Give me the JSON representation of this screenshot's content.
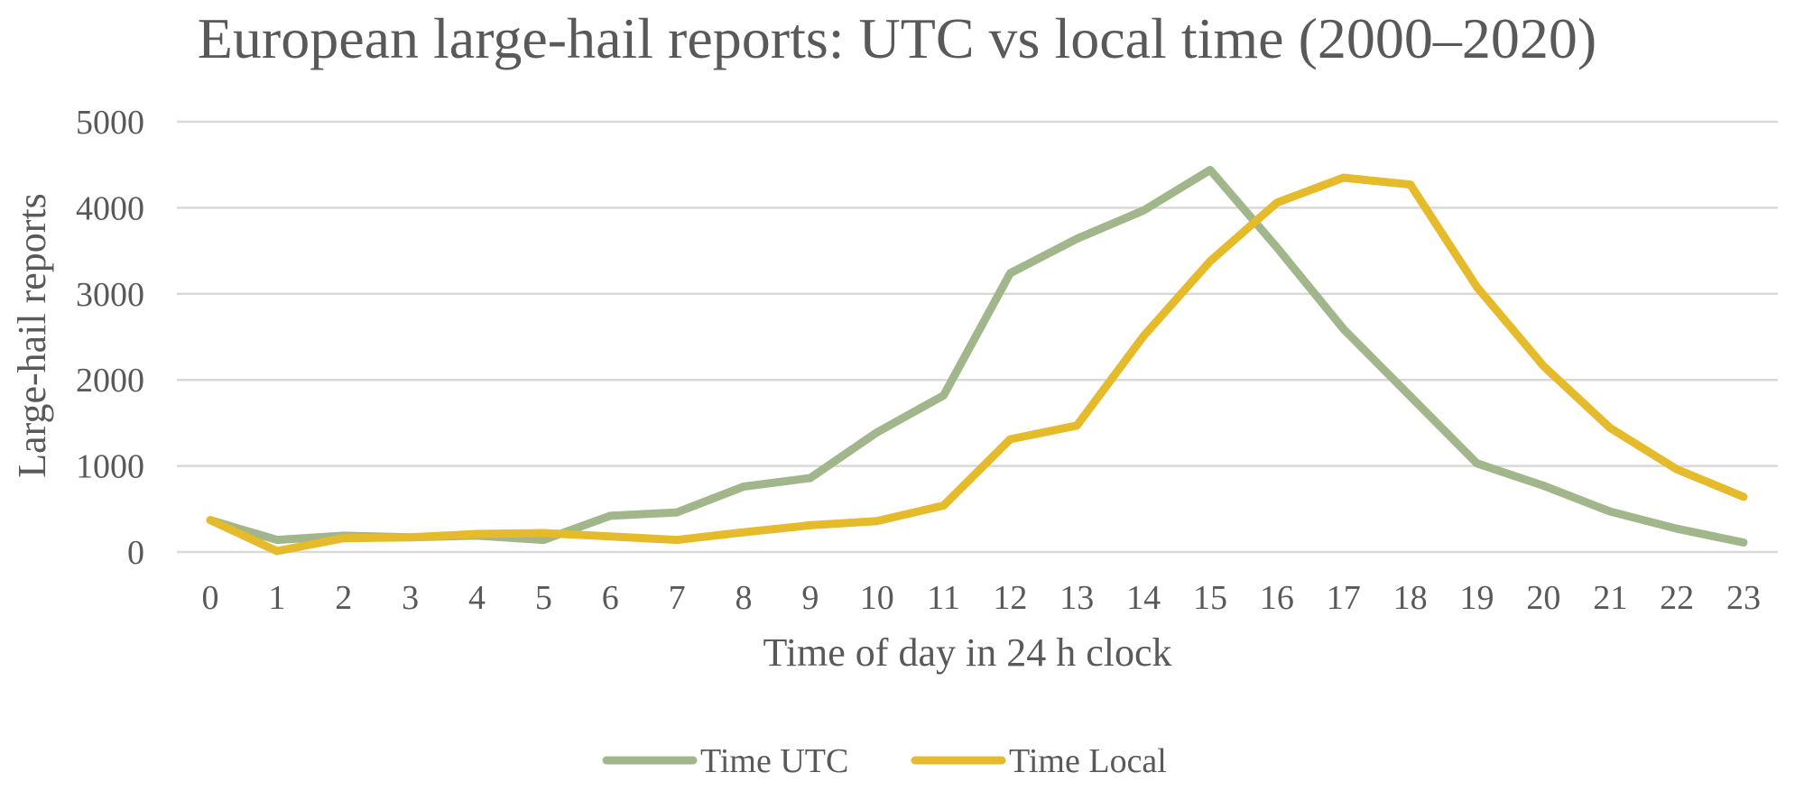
{
  "chart_data": {
    "type": "line",
    "title": "European large-hail reports: UTC vs local time (2000–2020)",
    "xlabel": "Time of day in 24 h clock",
    "ylabel": "Large-hail reports",
    "x": [
      0,
      1,
      2,
      3,
      4,
      5,
      6,
      7,
      8,
      9,
      10,
      11,
      12,
      13,
      14,
      15,
      16,
      17,
      18,
      19,
      20,
      21,
      22,
      23
    ],
    "x_tick_labels": [
      "0",
      "1",
      "2",
      "3",
      "4",
      "5",
      "6",
      "7",
      "8",
      "9",
      "10",
      "11",
      "12",
      "13",
      "14",
      "15",
      "16",
      "17",
      "18",
      "19",
      "20",
      "21",
      "22",
      "23"
    ],
    "ylim": [
      0,
      5000
    ],
    "y_ticks": [
      0,
      1000,
      2000,
      3000,
      4000,
      5000
    ],
    "y_tick_labels": [
      "0",
      "1000",
      "2000",
      "3000",
      "4000",
      "5000"
    ],
    "grid": true,
    "legend_position": "bottom",
    "series": [
      {
        "name": "Time UTC",
        "color": "#a2b68b",
        "values": [
          370,
          140,
          190,
          170,
          190,
          140,
          420,
          460,
          760,
          860,
          1390,
          1820,
          3240,
          3640,
          3970,
          4440,
          3540,
          2590,
          1810,
          1030,
          770,
          470,
          270,
          110
        ]
      },
      {
        "name": "Time Local",
        "color": "#e5bb2b",
        "values": [
          370,
          10,
          160,
          170,
          210,
          220,
          180,
          140,
          230,
          310,
          360,
          540,
          1310,
          1470,
          2510,
          3380,
          4060,
          4350,
          4270,
          3080,
          2160,
          1440,
          960,
          640
        ]
      }
    ]
  }
}
